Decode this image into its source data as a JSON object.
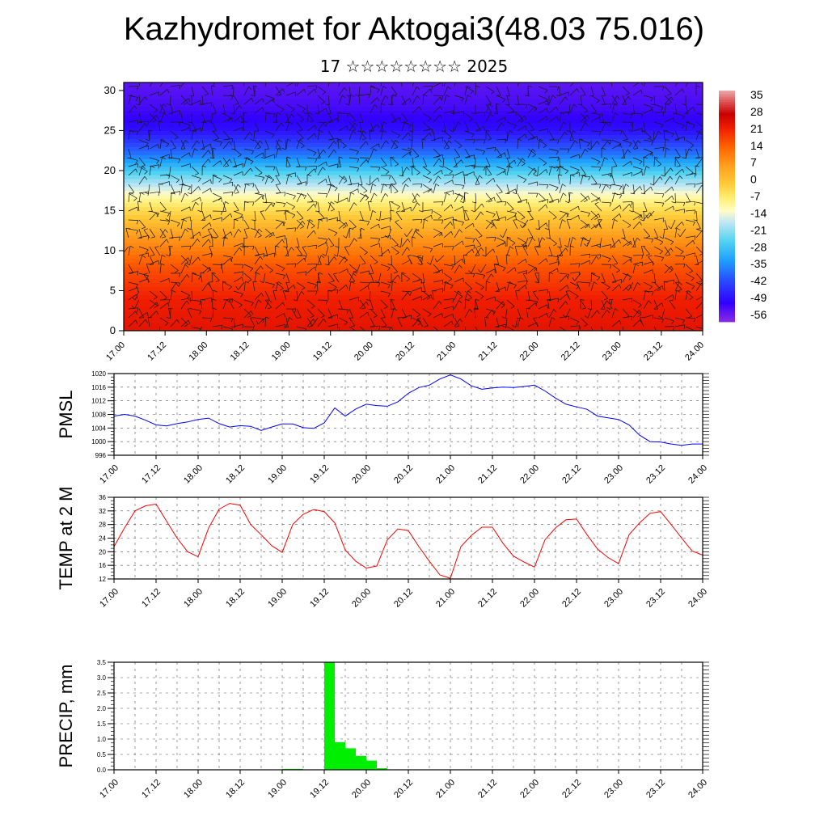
{
  "header": {
    "title": "Kazhydromet for Aktogai3(48.03 75.016)",
    "subtitle": "17 ☆☆☆☆☆☆☆☆ 2025"
  },
  "colors": {
    "pmsl_line": "#0000ff",
    "temp_line": "#ff0000",
    "precip_bar": "#00ee00",
    "frame": "#000000"
  },
  "chart_data": [
    {
      "type": "heatmap",
      "title": "",
      "xlabel": "",
      "ylabel": "",
      "x_tick_labels": [
        "17.00",
        "17.12",
        "18.00",
        "18.12",
        "19.00",
        "19.12",
        "20.00",
        "20.12",
        "21.00",
        "21.12",
        "22.00",
        "22.12",
        "23.00",
        "23.12",
        "24.00"
      ],
      "y_ticks": [
        0,
        5,
        10,
        15,
        20,
        25,
        30
      ],
      "ylim": [
        0,
        31
      ],
      "colorbar_labels": [
        "35",
        "28",
        "21",
        "14",
        "7",
        "0",
        "-7",
        "-14",
        "-21",
        "-28",
        "-35",
        "-42",
        "-49",
        "-56"
      ],
      "colorbar_range": [
        -60,
        38
      ],
      "profile_levels": [
        0,
        4,
        8,
        12,
        15,
        16.5,
        19,
        22,
        25,
        28,
        31
      ],
      "profile_values": [
        24,
        22,
        16,
        6,
        -4,
        -10,
        -22,
        -38,
        -50,
        -54,
        -56
      ],
      "overlay": "wind barbs"
    },
    {
      "type": "line",
      "ylabel": "PMSL",
      "x_tick_labels": [
        "17.00",
        "17.12",
        "18.00",
        "18.12",
        "19.00",
        "19.12",
        "20.00",
        "20.12",
        "21.00",
        "21.12",
        "22.00",
        "22.12",
        "23.00",
        "23.12",
        "24.00"
      ],
      "y_ticks": [
        996,
        1000,
        1004,
        1008,
        1012,
        1016,
        1020
      ],
      "ylim": [
        996,
        1020
      ],
      "x": [
        0,
        3,
        6,
        9,
        12,
        15,
        18,
        21,
        24,
        27,
        30,
        33,
        36,
        39,
        42,
        45,
        48,
        51,
        54,
        57,
        60,
        63,
        66,
        69,
        72,
        75,
        78,
        81,
        84,
        87,
        90,
        93,
        96,
        99,
        102,
        105,
        108,
        111,
        114,
        117,
        120,
        123,
        126,
        129,
        132,
        135,
        138,
        141,
        144,
        147,
        150,
        153,
        156,
        159,
        162,
        165,
        168
      ],
      "series": [
        {
          "values": [
            1007.5,
            1008.0,
            1007.5,
            1006.3,
            1004.9,
            1004.6,
            1005.3,
            1005.8,
            1006.5,
            1006.9,
            1005.3,
            1004.3,
            1004.7,
            1004.5,
            1003.3,
            1004.3,
            1005.2,
            1005.2,
            1004.1,
            1003.9,
            1005.5,
            1009.9,
            1007.5,
            1009.6,
            1011.0,
            1010.6,
            1010.4,
            1011.7,
            1014.2,
            1015.9,
            1016.6,
            1018.4,
            1019.6,
            1018.4,
            1016.4,
            1015.4,
            1015.8,
            1016.0,
            1015.9,
            1016.2,
            1016.6,
            1014.9,
            1012.8,
            1011.0,
            1010.2,
            1009.5,
            1007.5,
            1007.0,
            1006.5,
            1004.9,
            1001.9,
            1000.0,
            999.9,
            999.3,
            998.9,
            999.3,
            999.3
          ]
        }
      ]
    },
    {
      "type": "line",
      "ylabel": "TEMP at 2 M",
      "x_tick_labels": [
        "17.00",
        "17.12",
        "18.00",
        "18.12",
        "19.00",
        "19.12",
        "20.00",
        "20.12",
        "21.00",
        "21.12",
        "22.00",
        "22.12",
        "23.00",
        "23.12",
        "24.00"
      ],
      "y_ticks": [
        12,
        16,
        20,
        24,
        28,
        32,
        36
      ],
      "ylim": [
        12,
        36
      ],
      "x": [
        0,
        3,
        6,
        9,
        12,
        15,
        18,
        21,
        24,
        27,
        30,
        33,
        36,
        39,
        42,
        45,
        48,
        51,
        54,
        57,
        60,
        63,
        66,
        69,
        72,
        75,
        78,
        81,
        84,
        87,
        90,
        93,
        96,
        99,
        102,
        105,
        108,
        111,
        114,
        117,
        120,
        123,
        126,
        129,
        132,
        135,
        138,
        141,
        144,
        147,
        150,
        153,
        156,
        159,
        162,
        165,
        168
      ],
      "series": [
        {
          "values": [
            21.5,
            27.0,
            32.0,
            33.5,
            34.0,
            29.0,
            24.0,
            20.0,
            18.5,
            27.0,
            32.5,
            34.2,
            33.7,
            28.0,
            25.0,
            21.8,
            19.8,
            28.0,
            31.0,
            32.4,
            31.8,
            28.5,
            20.5,
            17.2,
            15.2,
            15.8,
            23.5,
            26.7,
            26.2,
            21.5,
            17.2,
            13.2,
            12.2,
            21.5,
            24.8,
            27.2,
            27.2,
            22.5,
            18.7,
            17.0,
            15.5,
            23.5,
            27.0,
            29.4,
            29.6,
            25.0,
            20.8,
            18.3,
            16.5,
            25.0,
            28.5,
            31.3,
            31.8,
            28.0,
            24.0,
            20.2,
            19.0
          ]
        }
      ]
    },
    {
      "type": "bar",
      "ylabel": "PRECIP, mm",
      "x_tick_labels": [
        "17.00",
        "17.12",
        "18.00",
        "18.12",
        "19.00",
        "19.12",
        "20.00",
        "20.12",
        "21.00",
        "21.12",
        "22.00",
        "22.12",
        "23.00",
        "23.12",
        "24.00"
      ],
      "y_ticks": [
        0.0,
        0.5,
        1.0,
        1.5,
        2.0,
        2.5,
        3.0,
        3.5
      ],
      "y_tick_labels": [
        "0.0",
        "0.5",
        "1.0",
        "1.5",
        "2.0",
        "2.5",
        "3.0",
        "3.5"
      ],
      "ylim": [
        0,
        3.5
      ],
      "bar_width_hours": 3,
      "x": [
        48,
        51,
        60,
        63,
        66,
        69,
        72,
        75
      ],
      "values": [
        0.03,
        0.03,
        3.5,
        0.9,
        0.7,
        0.45,
        0.3,
        0.05
      ]
    }
  ]
}
